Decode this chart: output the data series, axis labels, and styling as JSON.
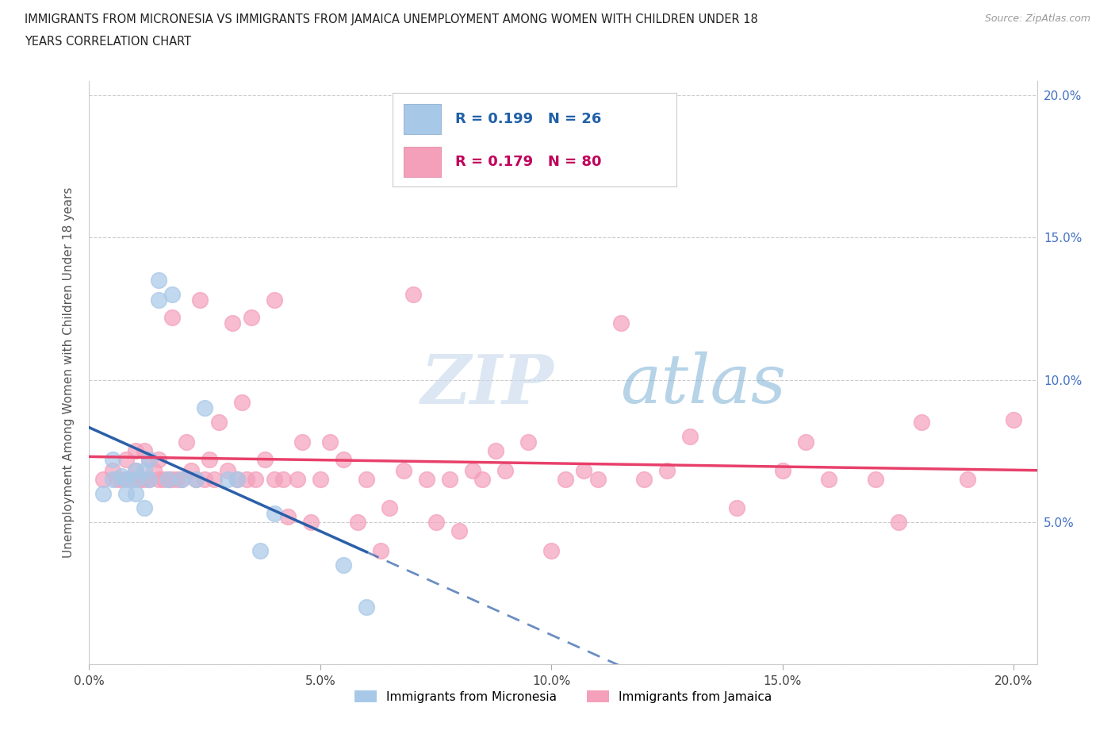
{
  "title_line1": "IMMIGRANTS FROM MICRONESIA VS IMMIGRANTS FROM JAMAICA UNEMPLOYMENT AMONG WOMEN WITH CHILDREN UNDER 18",
  "title_line2": "YEARS CORRELATION CHART",
  "source": "Source: ZipAtlas.com",
  "ylabel": "Unemployment Among Women with Children Under 18 years",
  "watermark_text": "ZIP",
  "watermark_text2": "atlas",
  "r1": 0.199,
  "n1": 26,
  "r2": 0.179,
  "n2": 80,
  "color1": "#a8c8e8",
  "color2": "#f4a0bb",
  "line_color1": "#2b5fa8",
  "line_color2": "#e8406a",
  "xlim": [
    0.0,
    0.205
  ],
  "ylim": [
    0.0,
    0.205
  ],
  "xticks": [
    0.0,
    0.05,
    0.1,
    0.15,
    0.2
  ],
  "yticks": [
    0.05,
    0.1,
    0.15,
    0.2
  ],
  "xtick_labels": [
    "0.0%",
    "5.0%",
    "10.0%",
    "15.0%",
    "20.0%"
  ],
  "right_ytick_labels": [
    "5.0%",
    "10.0%",
    "15.0%",
    "20.0%"
  ],
  "legend_name1": "Immigrants from Micronesia",
  "legend_name2": "Immigrants from Jamaica",
  "mic_x": [
    0.003,
    0.005,
    0.005,
    0.007,
    0.008,
    0.008,
    0.01,
    0.01,
    0.01,
    0.012,
    0.012,
    0.013,
    0.013,
    0.015,
    0.015,
    0.017,
    0.018,
    0.02,
    0.023,
    0.025,
    0.03,
    0.032,
    0.037,
    0.04,
    0.055,
    0.06
  ],
  "mic_y": [
    0.06,
    0.065,
    0.072,
    0.066,
    0.06,
    0.065,
    0.068,
    0.06,
    0.065,
    0.068,
    0.055,
    0.065,
    0.072,
    0.135,
    0.128,
    0.065,
    0.13,
    0.065,
    0.065,
    0.09,
    0.065,
    0.065,
    0.04,
    0.053,
    0.035,
    0.02
  ],
  "jam_x": [
    0.003,
    0.005,
    0.006,
    0.007,
    0.008,
    0.009,
    0.01,
    0.01,
    0.011,
    0.012,
    0.012,
    0.013,
    0.013,
    0.014,
    0.015,
    0.015,
    0.016,
    0.017,
    0.018,
    0.018,
    0.019,
    0.02,
    0.021,
    0.022,
    0.023,
    0.024,
    0.025,
    0.026,
    0.027,
    0.028,
    0.03,
    0.031,
    0.032,
    0.033,
    0.034,
    0.035,
    0.036,
    0.038,
    0.04,
    0.04,
    0.042,
    0.043,
    0.045,
    0.046,
    0.048,
    0.05,
    0.052,
    0.055,
    0.058,
    0.06,
    0.063,
    0.065,
    0.068,
    0.07,
    0.073,
    0.075,
    0.078,
    0.08,
    0.083,
    0.085,
    0.088,
    0.09,
    0.095,
    0.1,
    0.103,
    0.107,
    0.11,
    0.115,
    0.12,
    0.125,
    0.13,
    0.14,
    0.15,
    0.155,
    0.16,
    0.17,
    0.175,
    0.18,
    0.19,
    0.2
  ],
  "jam_y": [
    0.065,
    0.068,
    0.065,
    0.065,
    0.072,
    0.065,
    0.068,
    0.075,
    0.065,
    0.065,
    0.075,
    0.065,
    0.072,
    0.068,
    0.065,
    0.072,
    0.065,
    0.065,
    0.065,
    0.122,
    0.065,
    0.065,
    0.078,
    0.068,
    0.065,
    0.128,
    0.065,
    0.072,
    0.065,
    0.085,
    0.068,
    0.12,
    0.065,
    0.092,
    0.065,
    0.122,
    0.065,
    0.072,
    0.065,
    0.128,
    0.065,
    0.052,
    0.065,
    0.078,
    0.05,
    0.065,
    0.078,
    0.072,
    0.05,
    0.065,
    0.04,
    0.055,
    0.068,
    0.13,
    0.065,
    0.05,
    0.065,
    0.047,
    0.068,
    0.065,
    0.075,
    0.068,
    0.078,
    0.04,
    0.065,
    0.068,
    0.065,
    0.12,
    0.065,
    0.068,
    0.08,
    0.055,
    0.068,
    0.078,
    0.065,
    0.065,
    0.05,
    0.085,
    0.065,
    0.086
  ]
}
